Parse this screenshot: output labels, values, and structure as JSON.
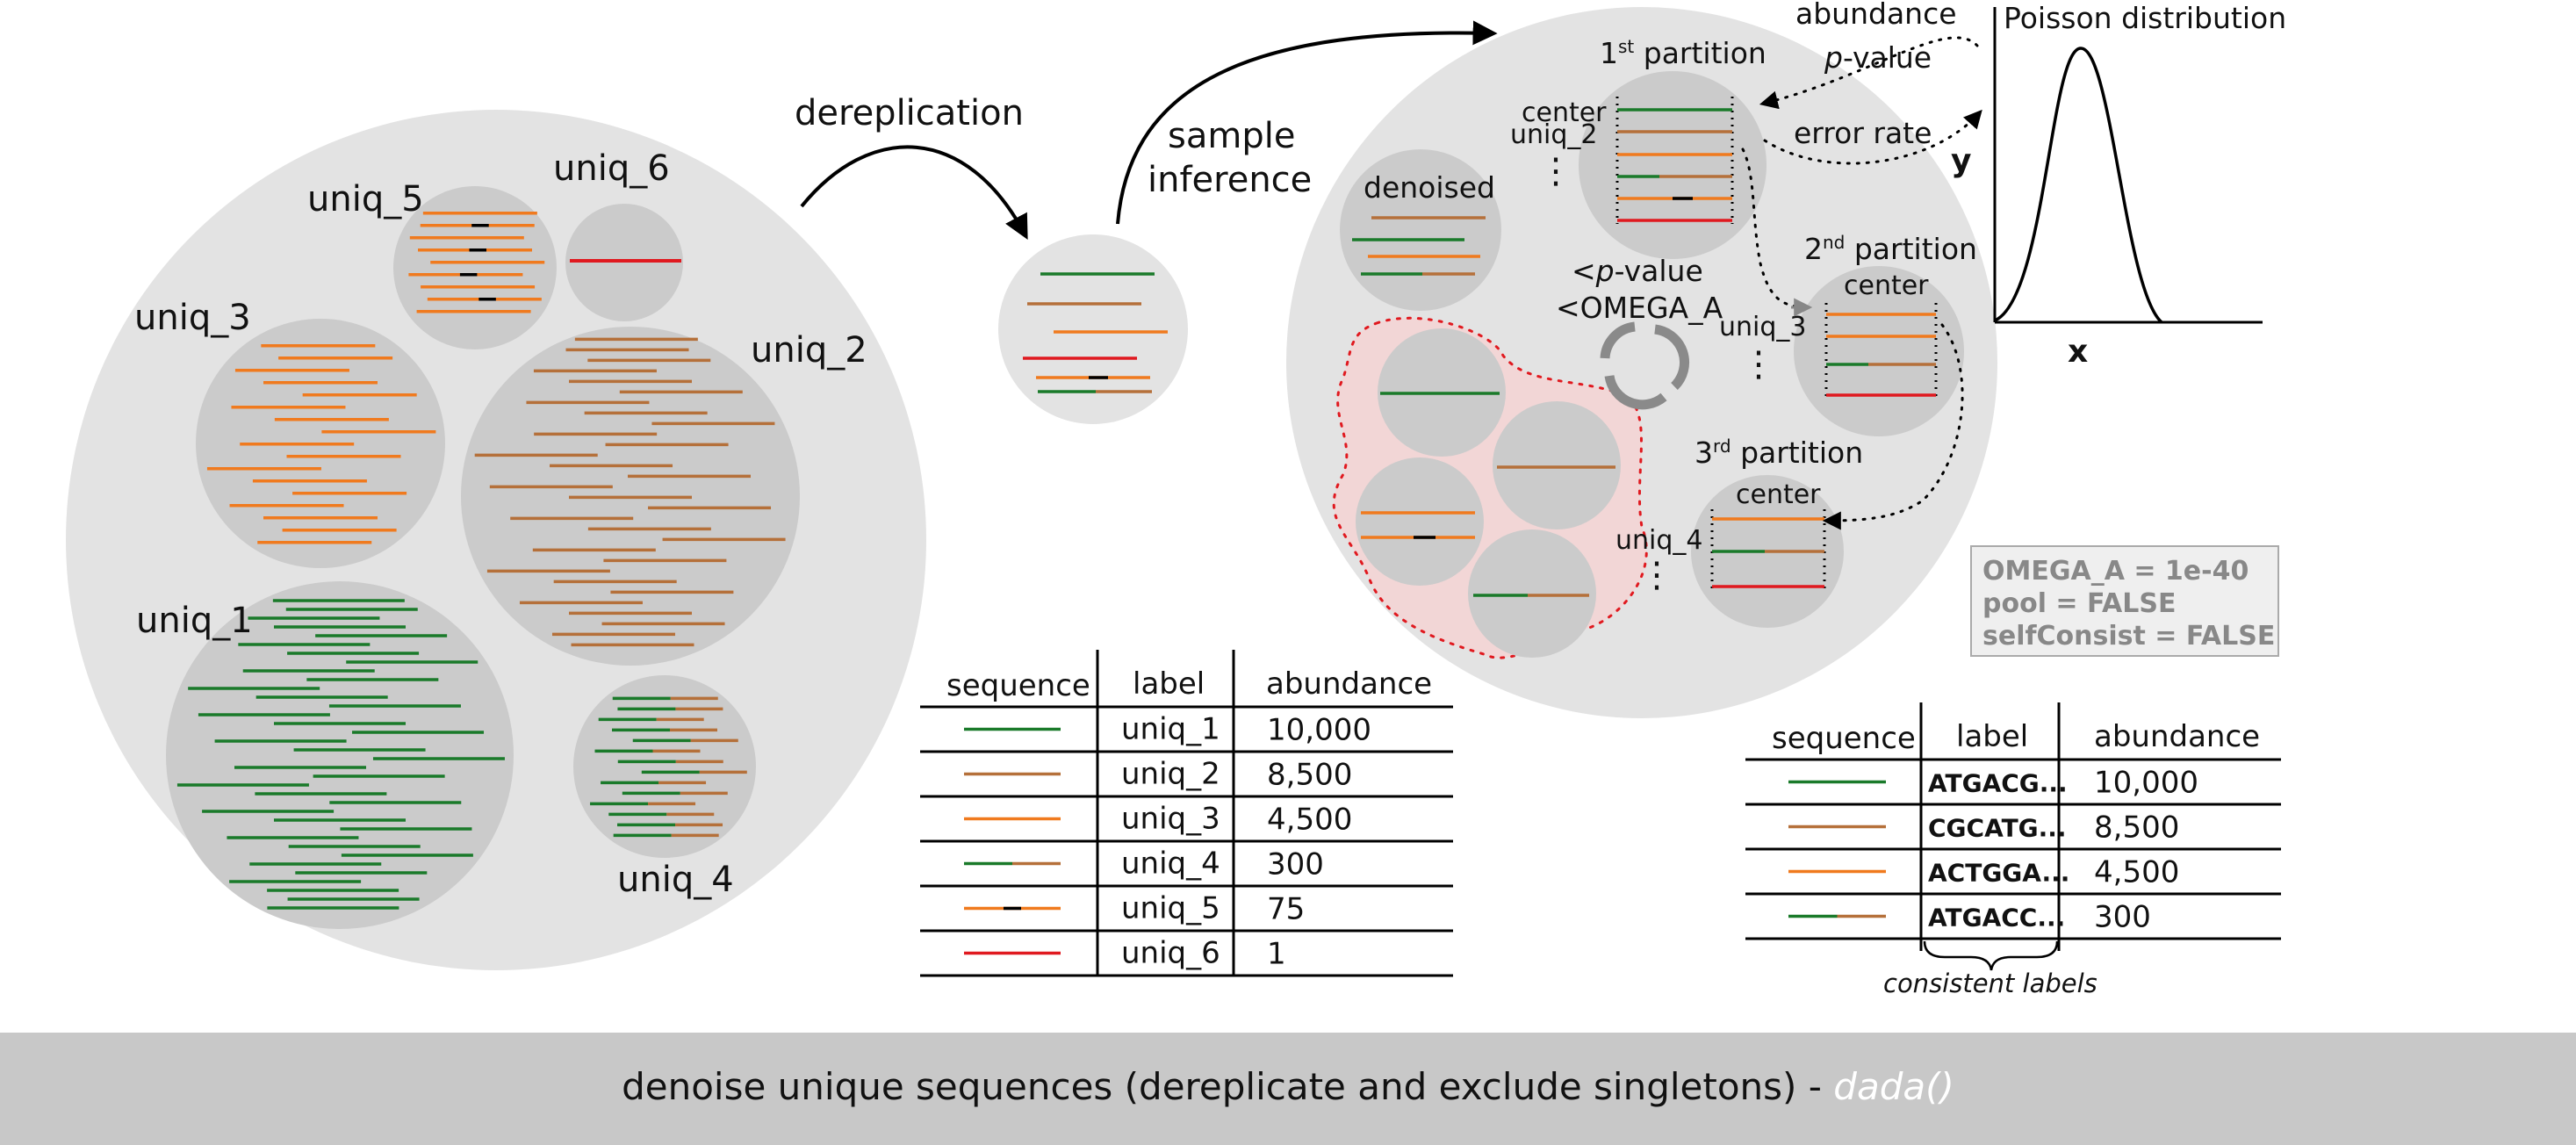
{
  "labels": {
    "dereplication": "dereplication",
    "sample_inference_1": "sample",
    "sample_inference_2": "inference",
    "uniq_1": "uniq_1",
    "uniq_2": "uniq_2",
    "uniq_3": "uniq_3",
    "uniq_4": "uniq_4",
    "uniq_5": "uniq_5",
    "uniq_6": "uniq_6",
    "denoised": "denoised",
    "p1_ord": "1",
    "p1_sup": "st",
    "p1_rest": " partition",
    "p2_ord": "2",
    "p2_sup": "nd",
    "p2_rest": " partition",
    "p3_ord": "3",
    "p3_sup": "rd",
    "p3_rest": " partition",
    "center": "center",
    "lt_pvalue_lt": "<",
    "lt_pvalue_p": "p",
    "lt_pvalue_rest": "-value",
    "lt_omega": "<OMEGA_A",
    "abundance": "abundance",
    "pvalue_p": "p",
    "pvalue_rest": "-value",
    "error_rate": "error rate",
    "poisson_title": "Poisson distribution",
    "axis_x": "x",
    "axis_y": "y",
    "ellipsis": "⋮",
    "consistent_labels": "consistent labels"
  },
  "params": {
    "omega": "OMEGA_A = 1e-40",
    "pool": "pool = FALSE",
    "self_consist": "selfConsist = FALSE"
  },
  "table1": {
    "headers": [
      "sequence",
      "label",
      "abundance"
    ],
    "rows": [
      {
        "label": "uniq_1",
        "abundance": "10,000"
      },
      {
        "label": "uniq_2",
        "abundance": "8,500"
      },
      {
        "label": "uniq_3",
        "abundance": "4,500"
      },
      {
        "label": "uniq_4",
        "abundance": "300"
      },
      {
        "label": "uniq_5",
        "abundance": "75"
      },
      {
        "label": "uniq_6",
        "abundance": "1"
      }
    ]
  },
  "table2": {
    "headers": [
      "sequence",
      "label",
      "abundance"
    ],
    "rows": [
      {
        "label": "ATGACG...",
        "abundance": "10,000"
      },
      {
        "label": "CGCATG...",
        "abundance": "8,500"
      },
      {
        "label": "ACTGGA...",
        "abundance": "4,500"
      },
      {
        "label": "ATGACC...",
        "abundance": "300"
      }
    ]
  },
  "footer": {
    "text": "denoise unique sequences (dereplicate and exclude singletons) - ",
    "function": "dada()"
  },
  "colors": {
    "green": "#1a7a2a",
    "brown": "#b5703a",
    "orange": "#f07a1e",
    "red": "#e0191f",
    "black": "#000000",
    "big_circle": "#e3e3e3",
    "small_circle": "#cbcbcb",
    "footer_bar": "#c8c8c8"
  }
}
